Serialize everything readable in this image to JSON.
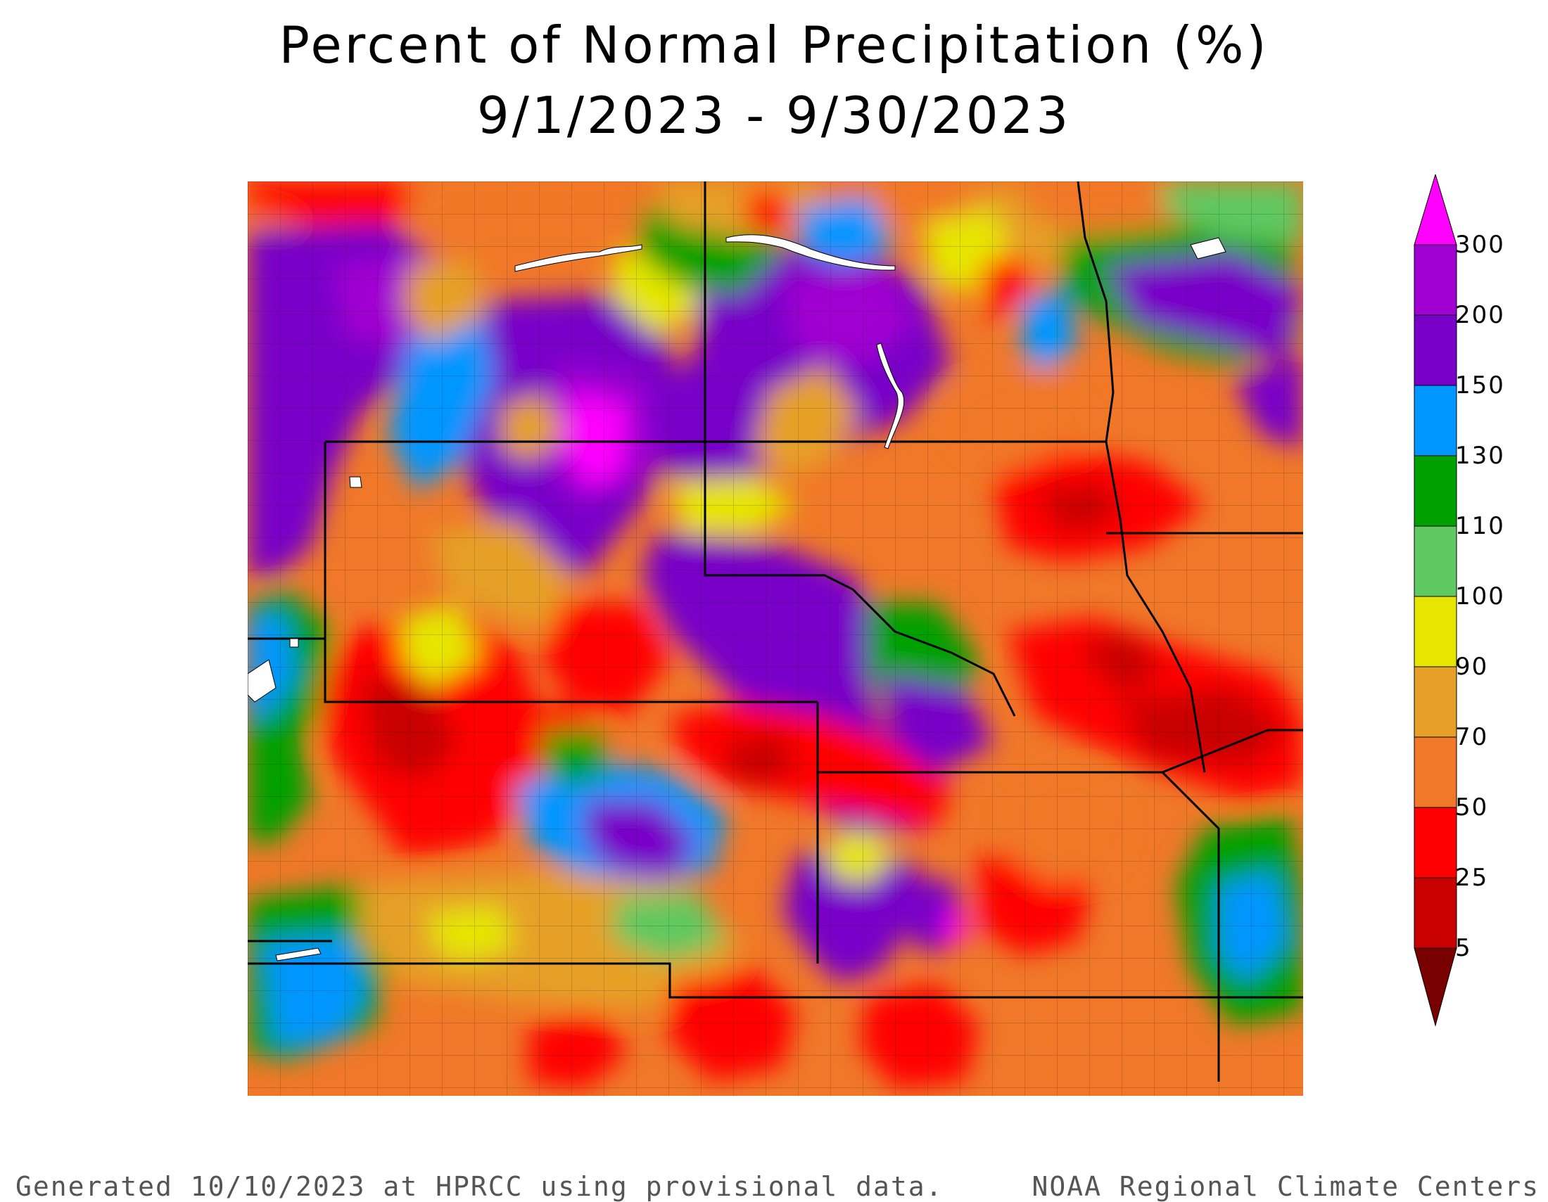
{
  "title": {
    "line1": "Percent of Normal Precipitation (%)",
    "line2": "9/1/2023 - 9/30/2023"
  },
  "legend": {
    "labels": [
      "300",
      "200",
      "150",
      "130",
      "110",
      "100",
      "90",
      "70",
      "50",
      "25",
      "5"
    ],
    "colors": {
      "above_300": "#ff00ff",
      "200_300": "#a000d2",
      "150_200": "#7800c8",
      "130_150": "#0096ff",
      "110_130": "#00a000",
      "100_110": "#60c860",
      "90_100": "#e6e600",
      "70_90": "#e6a028",
      "50_70": "#f07828",
      "25_50": "#ff0000",
      "5_25": "#c80000",
      "below_5": "#780000"
    }
  },
  "footer": {
    "left": "Generated 10/10/2023 at HPRCC using provisional data.",
    "right": "NOAA Regional Climate Centers"
  }
}
